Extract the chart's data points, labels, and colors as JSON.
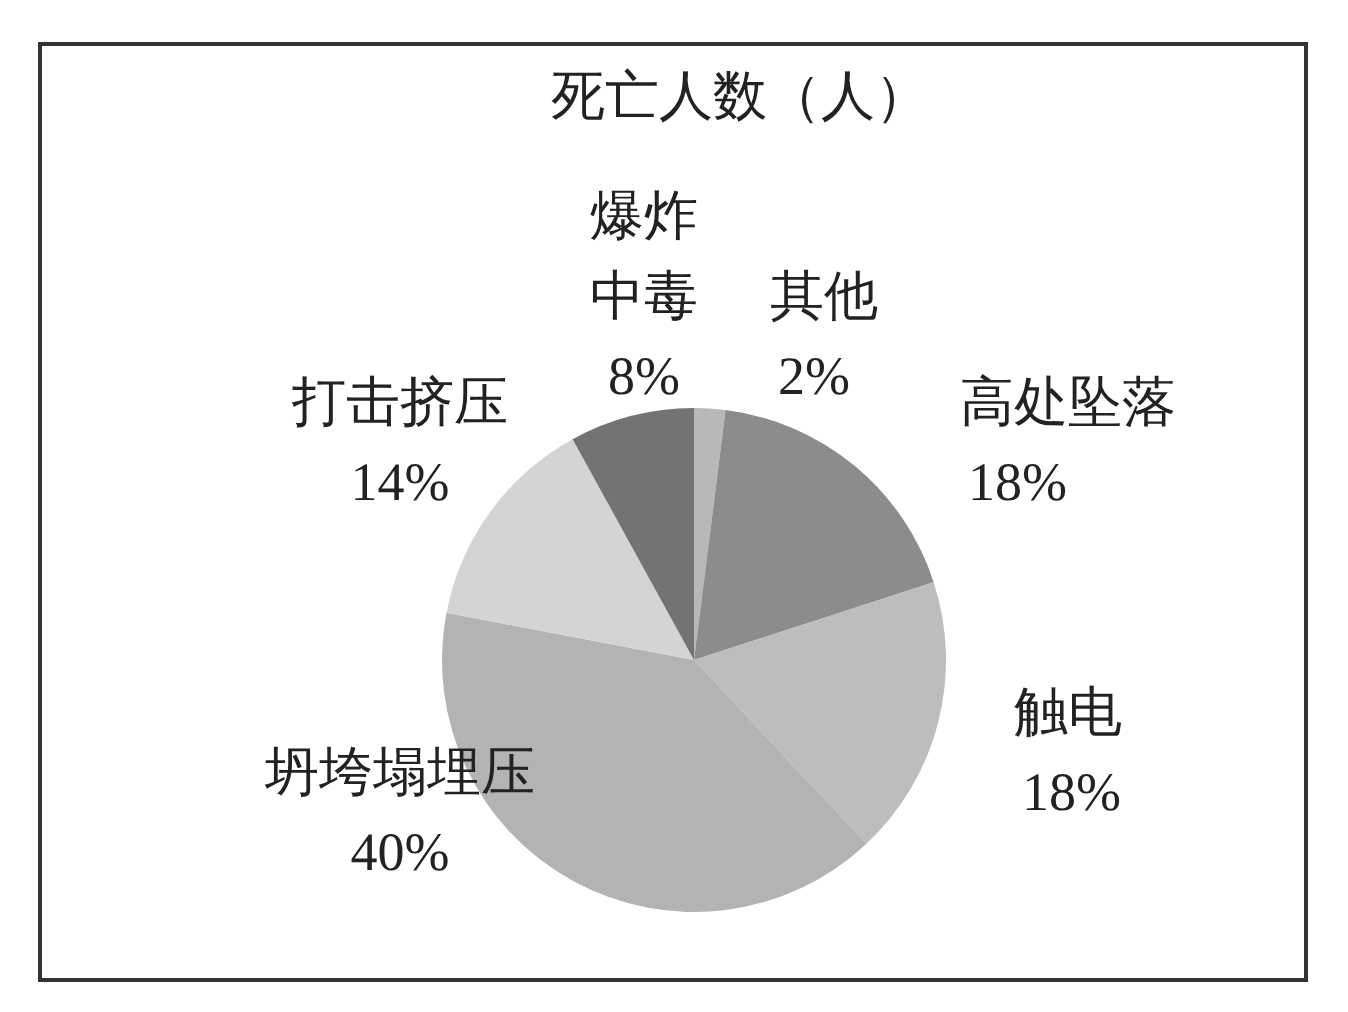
{
  "chart_data": {
    "type": "pie",
    "title": "死亡人数（人）",
    "categories": [
      "其他",
      "高处坠落",
      "触电",
      "坍垮塌埋压",
      "打击挤压",
      "爆炸中毒"
    ],
    "values": [
      2,
      18,
      18,
      40,
      14,
      8
    ],
    "value_labels": [
      "2%",
      "18%",
      "18%",
      "40%",
      "14%",
      "8%"
    ],
    "colors": [
      "#b8b8b8",
      "#8c8c8c",
      "#bdbdbd",
      "#b3b3b3",
      "#d4d4d4",
      "#737373"
    ]
  }
}
